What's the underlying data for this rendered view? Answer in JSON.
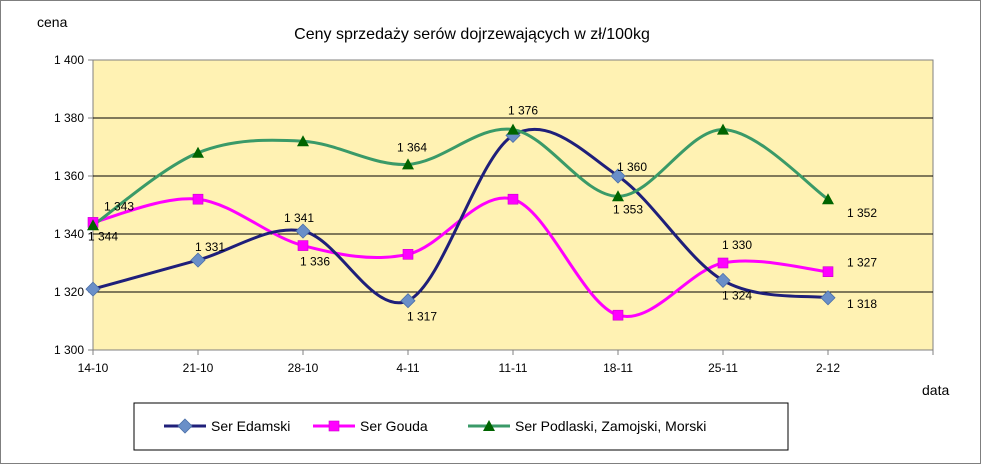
{
  "chart_data": {
    "type": "line",
    "title": "Ceny sprzedaży serów dojrzewających w zł/100kg",
    "ylabel": "cena",
    "xlabel": "data",
    "ylim": [
      1300,
      1400
    ],
    "yticks": [
      1300,
      1320,
      1340,
      1360,
      1380,
      1400
    ],
    "ytick_labels": [
      "1 300",
      "1 320",
      "1 340",
      "1 360",
      "1 380",
      "1 400"
    ],
    "categories": [
      "14-10",
      "21-10",
      "28-10",
      "4-11",
      "11-11",
      "18-11",
      "25-11",
      "2-12"
    ],
    "grid": true,
    "legend_position": "bottom",
    "plot_background": "#FFF2B3",
    "series": [
      {
        "name": "Ser Edamski",
        "color": "#1F1F7A",
        "marker_color": "#6A8FC8",
        "marker": "diamond",
        "values": [
          1321,
          1331,
          1341,
          1317,
          1374,
          1360,
          1324,
          1318
        ],
        "labels": [
          "",
          "1 331",
          "1 341",
          "1 317",
          "",
          "1 360",
          "1 324",
          "1 318"
        ]
      },
      {
        "name": "Ser Gouda",
        "color": "#FF00FF",
        "marker_color": "#FF00FF",
        "marker": "square",
        "values": [
          1344,
          1352,
          1336,
          1333,
          1352,
          1312,
          1330,
          1327
        ],
        "labels": [
          "1 344",
          "",
          "1 336",
          "",
          "",
          "",
          "1 330",
          "1 327"
        ]
      },
      {
        "name": "Ser Podlaski, Zamojski, Morski",
        "color": "#3A9A68",
        "marker_color": "#006400",
        "marker": "triangle",
        "values": [
          1343,
          1368,
          1372,
          1364,
          1376,
          1353,
          1376,
          1352
        ],
        "labels": [
          "1 343",
          "",
          "",
          "1 364",
          "1 376",
          "1 353",
          "",
          "1 352"
        ]
      }
    ]
  }
}
